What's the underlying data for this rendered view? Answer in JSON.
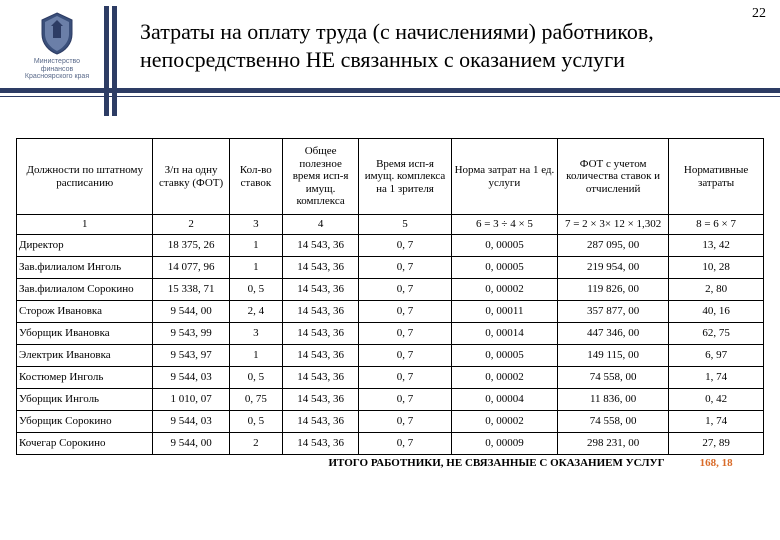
{
  "page_number": "22",
  "logo": {
    "line1": "Министерство финансов",
    "line2": "Красноярского края"
  },
  "title": "Затраты на оплату труда (с начислениями) работников, непосредственно НЕ связанных с оказанием услуги",
  "columns": [
    "Должности по штатному расписанию",
    "З/п на одну ставку (ФОТ)",
    "Кол-во ставок",
    "Общее полезное время исп-я имущ. комплекса",
    "Время исп-я имущ. комплекса на 1 зрителя",
    "Норма затрат на 1 ед. услуги",
    "ФОТ с учетом количества ставок и отчислений",
    "Нормативные затраты"
  ],
  "col_numbers": [
    "1",
    "2",
    "3",
    "4",
    "5",
    "6 = 3 ÷ 4 × 5",
    "7 = 2 × 3× 12 × 1,302",
    "8 = 6 × 7"
  ],
  "rows": [
    {
      "pos": "Директор",
      "c2": "18 375, 26",
      "c3": "1",
      "c4": "14 543, 36",
      "c5": "0, 7",
      "c6": "0, 00005",
      "c7": "287 095, 00",
      "c8": "13, 42"
    },
    {
      "pos": "Зав.филиалом Инголь",
      "c2": "14 077, 96",
      "c3": "1",
      "c4": "14 543, 36",
      "c5": "0, 7",
      "c6": "0, 00005",
      "c7": "219 954, 00",
      "c8": "10, 28"
    },
    {
      "pos": "Зав.филиалом Сорокино",
      "c2": "15 338, 71",
      "c3": "0, 5",
      "c4": "14 543, 36",
      "c5": "0, 7",
      "c6": "0, 00002",
      "c7": "119 826, 00",
      "c8": "2, 80"
    },
    {
      "pos": "Сторож Ивановка",
      "c2": "9 544, 00",
      "c3": "2, 4",
      "c4": "14 543, 36",
      "c5": "0, 7",
      "c6": "0, 00011",
      "c7": "357 877, 00",
      "c8": "40, 16"
    },
    {
      "pos": "Уборщик Ивановка",
      "c2": "9 543, 99",
      "c3": "3",
      "c4": "14 543, 36",
      "c5": "0, 7",
      "c6": "0, 00014",
      "c7": "447 346, 00",
      "c8": "62, 75"
    },
    {
      "pos": "Электрик Ивановка",
      "c2": "9 543, 97",
      "c3": "1",
      "c4": "14 543, 36",
      "c5": "0, 7",
      "c6": "0, 00005",
      "c7": "149 115, 00",
      "c8": "6, 97"
    },
    {
      "pos": "Костюмер Инголь",
      "c2": "9 544, 03",
      "c3": "0, 5",
      "c4": "14 543, 36",
      "c5": "0, 7",
      "c6": "0, 00002",
      "c7": "74 558, 00",
      "c8": "1, 74"
    },
    {
      "pos": "Уборщик Инголь",
      "c2": "1 010, 07",
      "c3": "0, 75",
      "c4": "14 543, 36",
      "c5": "0, 7",
      "c6": "0, 00004",
      "c7": "11 836, 00",
      "c8": "0, 42"
    },
    {
      "pos": "Уборщик Сорокино",
      "c2": "9 544, 03",
      "c3": "0, 5",
      "c4": "14 543, 36",
      "c5": "0, 7",
      "c6": "0, 00002",
      "c7": "74 558, 00",
      "c8": "1, 74"
    },
    {
      "pos": "Кочегар Сорокино",
      "c2": "9 544, 00",
      "c3": "2",
      "c4": "14 543, 36",
      "c5": "0, 7",
      "c6": "0, 00009",
      "c7": "298 231, 00",
      "c8": "27, 89"
    }
  ],
  "total": {
    "label": "ИТОГО РАБОТНИКИ, НЕ СВЯЗАННЫЕ С ОКАЗАНИЕМ УСЛУГ",
    "value": "168, 18"
  },
  "colors": {
    "rule": "#2d3c64",
    "total_value": "#d96c2a"
  }
}
